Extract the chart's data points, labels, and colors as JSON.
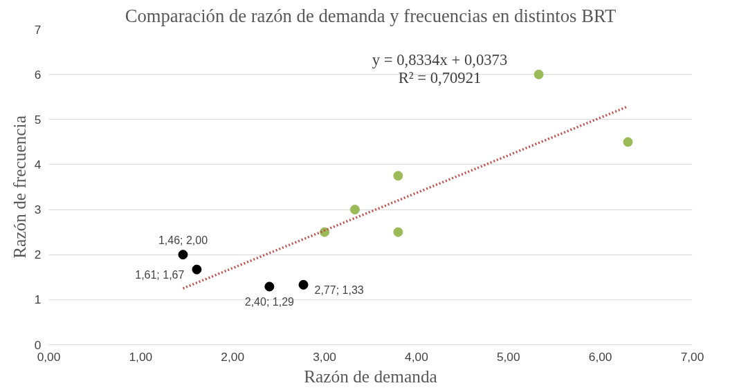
{
  "chart_data": {
    "type": "scatter",
    "title": "Comparación de razón de demanda y frecuencias en distintos BRT",
    "xlabel": "Razón de demanda",
    "ylabel": "Razón de frecuencia",
    "xlim": [
      0,
      7
    ],
    "ylim": [
      0,
      7
    ],
    "xticks": [
      {
        "value": 0,
        "label": "0,00"
      },
      {
        "value": 1,
        "label": "1,00"
      },
      {
        "value": 2,
        "label": "2,00"
      },
      {
        "value": 3,
        "label": "3,00"
      },
      {
        "value": 4,
        "label": "4,00"
      },
      {
        "value": 5,
        "label": "5,00"
      },
      {
        "value": 6,
        "label": "6,00"
      },
      {
        "value": 7,
        "label": "7,00"
      }
    ],
    "yticks": [
      0,
      1,
      2,
      3,
      4,
      5,
      6,
      7
    ],
    "grid": "y",
    "annotations": [
      "y = 0,8334x + 0,0373",
      "R² = 0,70921"
    ],
    "series": [
      {
        "marker": "circle",
        "color": "#9bbb59",
        "x": [
          3.0,
          3.33,
          3.8,
          3.8,
          5.33,
          6.3
        ],
        "values": [
          2.5,
          3.0,
          3.75,
          2.5,
          6.0,
          4.5
        ]
      },
      {
        "marker": "circle",
        "color": "#000000",
        "x": [
          1.46,
          1.61,
          2.4,
          2.77
        ],
        "values": [
          2.0,
          1.67,
          1.29,
          1.33
        ],
        "value_labels": [
          "1,46; 2,00",
          "1,61; 1,67",
          "2,40; 1,29",
          "2,77; 1,33"
        ]
      },
      {
        "type": "line",
        "color": "#c0504d",
        "line_style": "dotted",
        "x": [
          1.46,
          6.3
        ],
        "values": [
          1.25,
          5.29
        ]
      }
    ]
  }
}
